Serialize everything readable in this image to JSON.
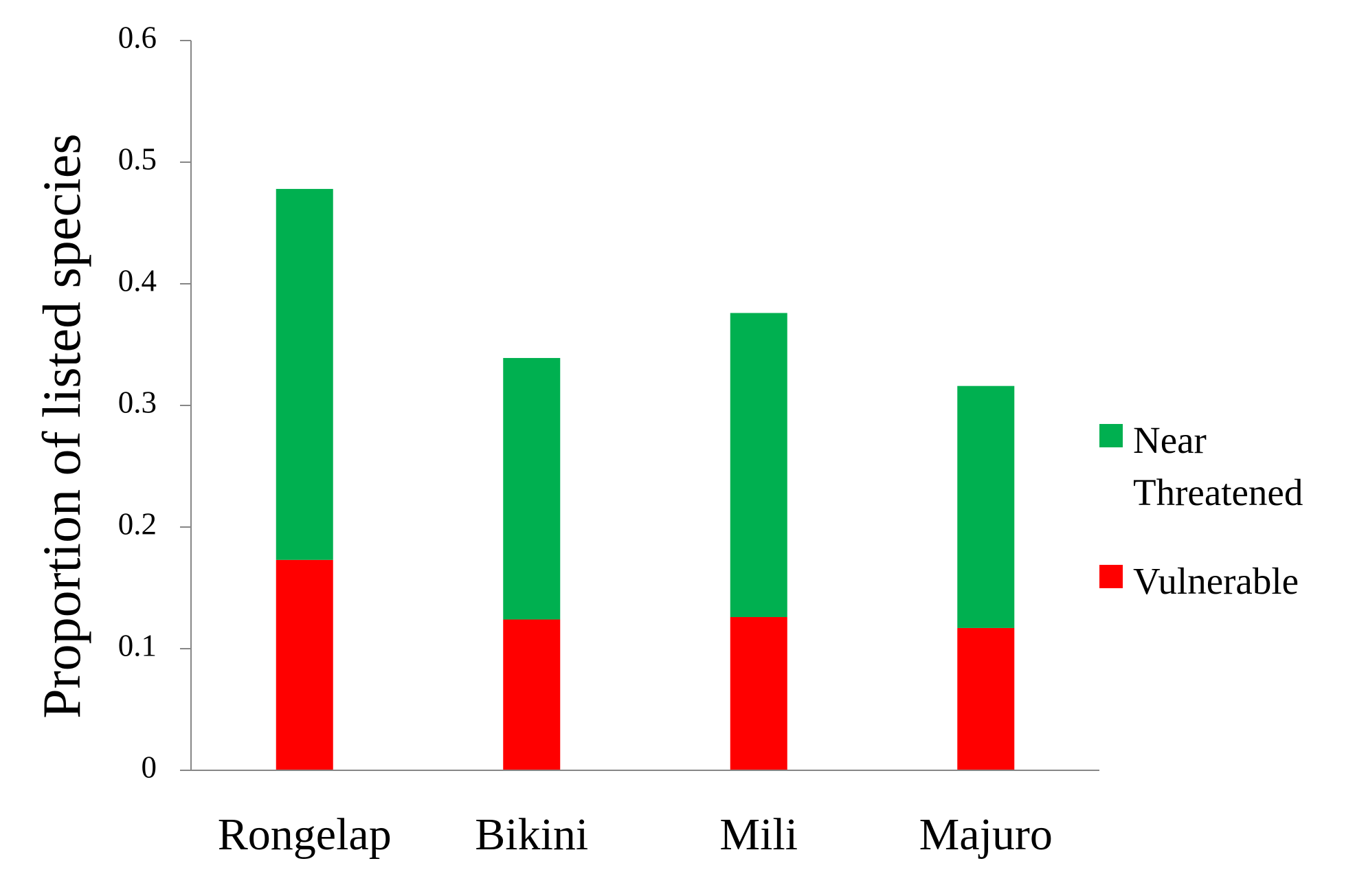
{
  "chart_data": {
    "type": "stacked_bar",
    "y_label": "Proportion of listed species",
    "categories": [
      "Rongelap",
      "Bikini",
      "Mili",
      "Majuro"
    ],
    "series": [
      {
        "name": "Vulnerable",
        "color": "#ff0000",
        "values": [
          0.173,
          0.124,
          0.126,
          0.117
        ]
      },
      {
        "name": "Near Threatened",
        "color": "#00b050",
        "values": [
          0.305,
          0.215,
          0.25,
          0.199
        ]
      }
    ],
    "ylim": [
      0,
      0.6
    ],
    "yticks": [
      0,
      0.1,
      0.2,
      0.3,
      0.4,
      0.5,
      0.6
    ],
    "legend": "right"
  }
}
